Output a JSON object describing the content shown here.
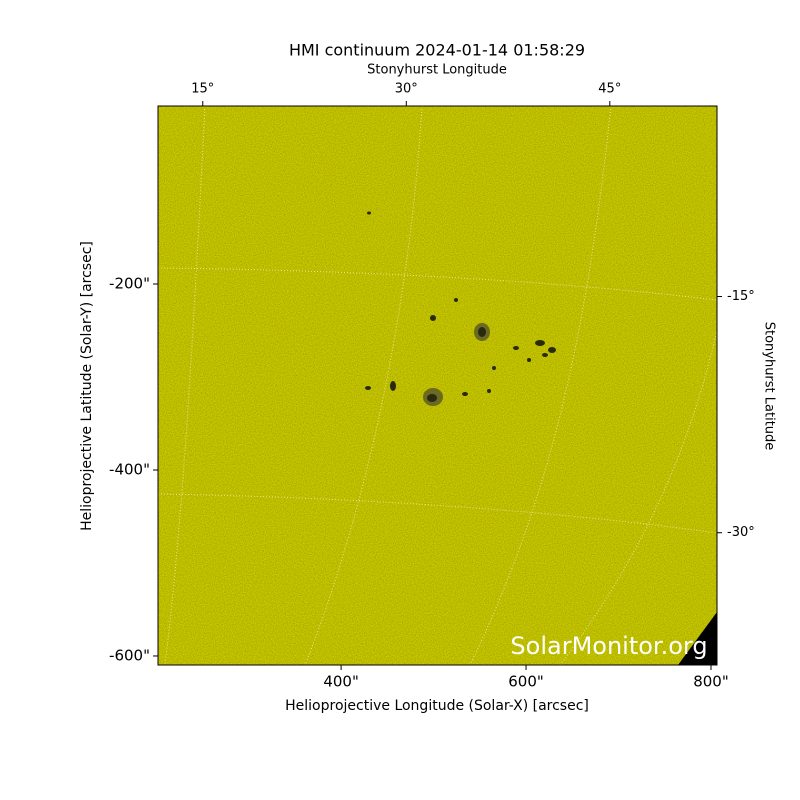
{
  "chart_data": {
    "type": "image",
    "title": "HMI continuum 2024-01-14 01:58:29",
    "xlabel": "Helioprojective Longitude (Solar-X) [arcsec]",
    "ylabel": "Helioprojective Latitude (Solar-Y) [arcsec]",
    "xlim": [
      202,
      806.5
    ],
    "ylim": [
      -609.7,
      -8.6
    ],
    "xticks": [
      {
        "value": 400,
        "label": "400\""
      },
      {
        "value": 600,
        "label": "600\""
      },
      {
        "value": 800,
        "label": "800\""
      }
    ],
    "yticks": [
      {
        "value": -200,
        "label": "-200\""
      },
      {
        "value": -400,
        "label": "-400\""
      },
      {
        "value": -600,
        "label": "-600\""
      }
    ],
    "x2label": "Stonyhurst Longitude",
    "x2lim": [
      11.7,
      52.9
    ],
    "x2ticks": [
      {
        "value": 15,
        "label": "15°"
      },
      {
        "value": 30,
        "label": "30°"
      },
      {
        "value": 45,
        "label": "45°"
      }
    ],
    "y2label": "Stonyhurst Latitude",
    "y2lim": [
      -38.4,
      -2.9
    ],
    "y2ticks": [
      {
        "value": -15,
        "label": "-15°"
      },
      {
        "value": -30,
        "label": "-30°"
      }
    ],
    "color": "#cccc00",
    "watermark": "SolarMonitor.org"
  }
}
